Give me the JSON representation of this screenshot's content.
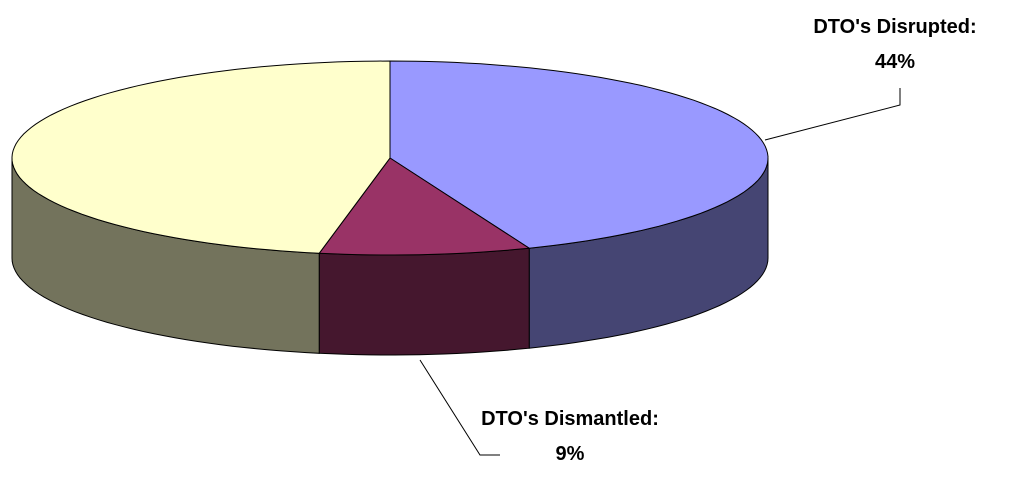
{
  "chart_data": {
    "type": "pie",
    "categories": [
      "DTO's Disrupted:",
      "DTO's Dismantled:",
      null
    ],
    "values": [
      44,
      9,
      47
    ],
    "value_labels": [
      "44%",
      "9%",
      null
    ],
    "colors": [
      "#9999ff",
      "#993366",
      "#ffffcc"
    ]
  }
}
